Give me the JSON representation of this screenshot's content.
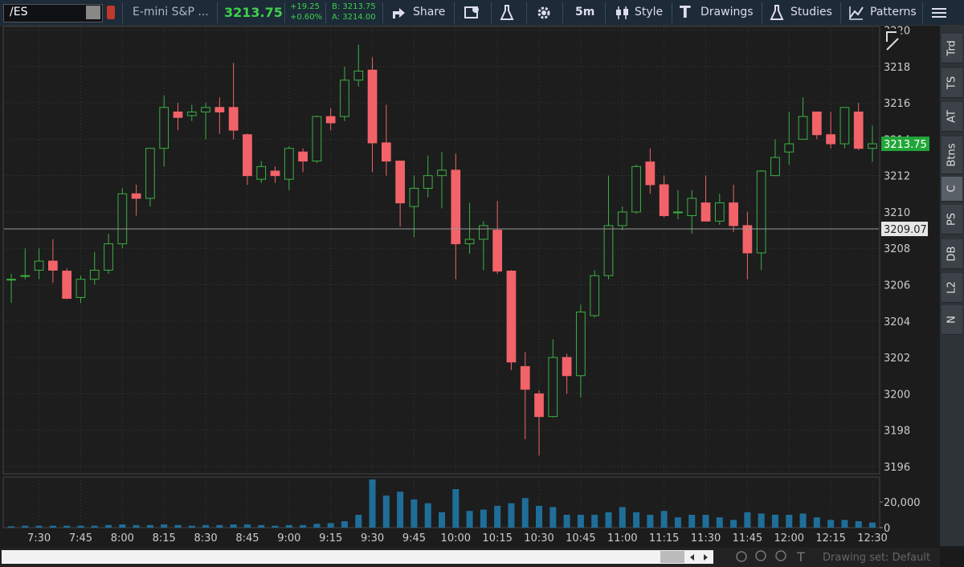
{
  "toolbar": {
    "symbol": "/ES",
    "description": "E-mini S&P ...",
    "last": "3213.75",
    "change": "+19.25",
    "change_pct": "+0.60%",
    "bid": "B: 3213.75",
    "ask": "A: 3214.00",
    "share": "Share",
    "timeframe": "5m",
    "style": "Style",
    "drawings": "Drawings",
    "studies": "Studies",
    "patterns": "Patterns"
  },
  "side_tabs": [
    "Trd",
    "TS",
    "AT",
    "Btns",
    "C",
    "PS",
    "DB",
    "L2",
    "N"
  ],
  "footer": {
    "drawing_set": "Drawing set: Default"
  },
  "chart_data": [
    {
      "type": "candlestick",
      "grid": true,
      "up_color": "#3bb143",
      "down_color": "#f26369",
      "x": [
        null,
        null,
        "7:30",
        null,
        null,
        "7:45",
        null,
        null,
        "8:00",
        null,
        null,
        "8:15",
        null,
        null,
        "8:30",
        null,
        null,
        "8:45",
        null,
        null,
        "9:00",
        null,
        null,
        "9:15",
        null,
        null,
        "9:30",
        null,
        null,
        "9:45",
        null,
        null,
        "10:00",
        null,
        null,
        "10:15",
        null,
        null,
        "10:30",
        null,
        null,
        "10:45",
        null,
        null,
        "11:00",
        null,
        null,
        "11:15",
        null,
        null,
        "11:30",
        null,
        null,
        "11:45",
        null,
        null,
        "12:00",
        null,
        null,
        "12:15",
        null,
        null,
        "12:30"
      ],
      "open": [
        3206.3,
        3206.5,
        3206.8,
        3207.3,
        3206.75,
        3205.3,
        3206.3,
        3206.8,
        3208.25,
        3211,
        3210.75,
        3213.5,
        3215.5,
        3215.3,
        3215.5,
        3215.75,
        3215.75,
        3214.25,
        3211.8,
        3212.25,
        3211.8,
        3213.3,
        3212.8,
        3215.25,
        3215.25,
        3217.25,
        3217.8,
        3213.8,
        3212.8,
        3210.3,
        3211.3,
        3212,
        3212.3,
        3208.25,
        3208.5,
        3209,
        3206.75,
        3201.5,
        3200,
        3198.75,
        3202,
        3201,
        3204.3,
        3206.5,
        3209.25,
        3210,
        3212.75,
        3211.5,
        3210,
        3209.8,
        3210.5,
        3209.5,
        3210.5,
        3209.25,
        3207.75,
        3212,
        3213.3,
        3214,
        3215.5,
        3214.25,
        3213.75,
        3215.5,
        3213.5
      ],
      "high": [
        3206.6,
        3208,
        3208,
        3208.5,
        3206.9,
        3206.5,
        3207.8,
        3208.8,
        3211.3,
        3211.5,
        3213.5,
        3216.4,
        3216,
        3215.9,
        3216,
        3216.3,
        3218.2,
        3214.3,
        3212.8,
        3212.5,
        3213.6,
        3213.5,
        3215.3,
        3215.7,
        3218,
        3219.2,
        3218.5,
        3215.9,
        3212.8,
        3212,
        3213.1,
        3213.3,
        3213.2,
        3210.5,
        3209.5,
        3210.6,
        3206.8,
        3202.3,
        3200.2,
        3203,
        3202.2,
        3204.9,
        3206.8,
        3212,
        3210.3,
        3212.6,
        3213.5,
        3212,
        3211.2,
        3211.2,
        3212,
        3211,
        3211.5,
        3210,
        3212.3,
        3214,
        3215.5,
        3216.3,
        3215.5,
        3215.5,
        3215.75,
        3216,
        3214.75
      ],
      "low": [
        3205,
        3206.3,
        3206.3,
        3206.1,
        3205.2,
        3205,
        3206,
        3206.6,
        3208,
        3209.8,
        3210.3,
        3212.5,
        3214.5,
        3215,
        3214,
        3214.3,
        3214,
        3211.5,
        3211.6,
        3211.6,
        3211.2,
        3212.2,
        3212.7,
        3214.5,
        3215,
        3216.9,
        3212.2,
        3212,
        3209.2,
        3208.6,
        3210.8,
        3210.2,
        3206.3,
        3207.7,
        3206.8,
        3206.6,
        3201.3,
        3197.5,
        3196.6,
        3198.7,
        3200,
        3199.8,
        3204.2,
        3206.3,
        3209,
        3209.9,
        3211,
        3209.7,
        3209.6,
        3208.8,
        3209.5,
        3209.3,
        3208.9,
        3206.3,
        3206.8,
        3212,
        3212.6,
        3214,
        3214,
        3213.5,
        3213.5,
        3213.4,
        3212.75
      ],
      "close": [
        3206.3,
        3206.5,
        3207.3,
        3206.8,
        3205.25,
        3206.3,
        3206.8,
        3208.25,
        3211,
        3210.75,
        3213.5,
        3215.75,
        3215.2,
        3215.5,
        3215.75,
        3215.5,
        3214.5,
        3212,
        3212.5,
        3212,
        3213.5,
        3212.8,
        3215.25,
        3214.9,
        3217.25,
        3217.75,
        3213.8,
        3212.8,
        3210.5,
        3211.3,
        3212,
        3212.3,
        3208.25,
        3208.5,
        3209.25,
        3206.75,
        3201.75,
        3200.25,
        3198.75,
        3202,
        3201,
        3204.5,
        3206.5,
        3209.25,
        3210,
        3212.5,
        3211.5,
        3209.8,
        3210,
        3210.75,
        3209.5,
        3210.5,
        3209.25,
        3207.75,
        3212.25,
        3213,
        3213.75,
        3215.25,
        3214.25,
        3213.75,
        3215.75,
        3213.5,
        3213.75
      ],
      "ylim": [
        3195.6,
        3220.2
      ],
      "yticks": [
        3196,
        3198,
        3200,
        3202,
        3204,
        3206,
        3208,
        3210,
        3212,
        3214,
        3216,
        3218,
        3220
      ],
      "last_price": 3213.75,
      "last_color": "#22a63a",
      "cursor_price": 3209.07
    },
    {
      "type": "bar",
      "color": "#1f6e99",
      "values": [
        1000,
        1500,
        1500,
        1500,
        1500,
        1500,
        1500,
        2000,
        2500,
        2000,
        2000,
        2500,
        2000,
        1500,
        2000,
        2000,
        2500,
        2500,
        2000,
        1500,
        2000,
        2000,
        3000,
        3500,
        5000,
        10000,
        37500,
        25000,
        28000,
        22000,
        19000,
        12000,
        30000,
        13000,
        14000,
        17000,
        19000,
        23000,
        17000,
        16000,
        10000,
        10000,
        10000,
        12000,
        16000,
        12000,
        10000,
        13000,
        8000,
        10000,
        10000,
        8000,
        6000,
        12000,
        11000,
        10000,
        10000,
        11000,
        8000,
        6000,
        6000,
        5000,
        4000
      ],
      "ylim": [
        0,
        38750
      ],
      "yticks": [
        0,
        {
          "value": 20000,
          "label": "20,000"
        }
      ]
    }
  ]
}
